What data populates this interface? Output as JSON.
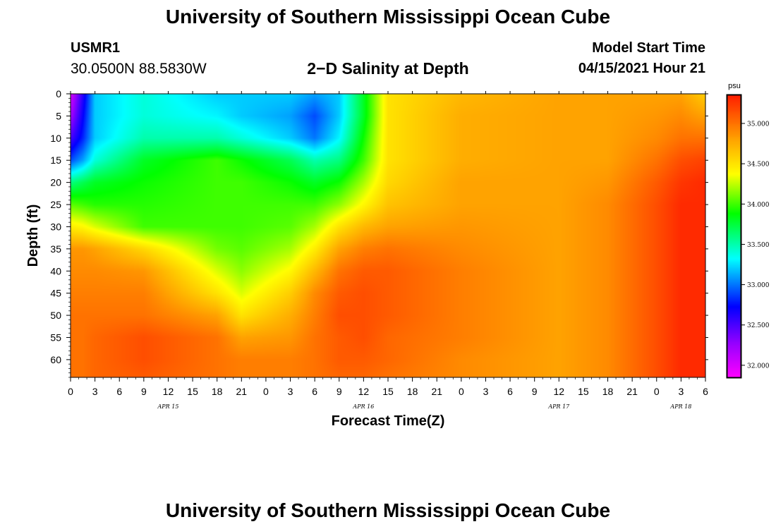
{
  "header": {
    "title": "University of Southern Mississippi Ocean Cube",
    "station_id": "USMR1",
    "location": "30.0500N  88.5830W",
    "chart_title": "2−D Salinity at Depth",
    "start_label": "Model Start Time",
    "start_value": "04/15/2021 Hour 21"
  },
  "footer": {
    "title": "University of Southern Mississippi Ocean Cube"
  },
  "colors": {
    "magenta": "#ff00ff",
    "blue": "#0000ff",
    "cyan": "#00ffff",
    "green": "#00ff00",
    "yellow": "#ffff00",
    "orange": "#ffa500",
    "red": "#ff2000"
  },
  "chart_data": {
    "type": "heatmap",
    "title": "2−D Salinity at Depth",
    "xlabel": "Forecast Time(Z)",
    "ylabel": "Depth (ft)",
    "x_range_hours": [
      0,
      78
    ],
    "y_range_ft": [
      0,
      64
    ],
    "x_tick_labels": [
      "0",
      "3",
      "6",
      "9",
      "12",
      "15",
      "18",
      "21",
      "0",
      "3",
      "6",
      "9",
      "12",
      "15",
      "18",
      "21",
      "0",
      "3",
      "6",
      "9",
      "12",
      "15",
      "18",
      "21",
      "0",
      "3",
      "6"
    ],
    "date_labels": [
      {
        "label": "APR 15",
        "hour": 12
      },
      {
        "label": "APR 16",
        "hour": 36
      },
      {
        "label": "APR 17",
        "hour": 60
      },
      {
        "label": "APR 18",
        "hour": 75
      }
    ],
    "y_ticks": [
      0,
      5,
      10,
      15,
      20,
      25,
      30,
      35,
      40,
      45,
      50,
      55,
      60
    ],
    "y_tick_labels": [
      "0",
      "5",
      "10",
      "15",
      "20",
      "25",
      "30",
      "35",
      "40",
      "45",
      "50",
      "55",
      "60"
    ],
    "colorbar": {
      "unit": "psu",
      "range": [
        31.85,
        35.35
      ],
      "tick_values": [
        32.0,
        32.5,
        33.0,
        33.5,
        34.0,
        34.5,
        35.0
      ],
      "tick_labels": [
        "32.000",
        "32.500",
        "33.000",
        "33.500",
        "34.000",
        "34.500",
        "35.000"
      ]
    },
    "grid_hours": [
      0,
      1.5,
      3,
      9,
      18,
      21,
      27,
      30,
      33,
      36,
      39,
      48,
      60,
      66,
      72,
      75,
      78
    ],
    "grid_depths": [
      0,
      5,
      10,
      15,
      20,
      25,
      30,
      35,
      40,
      45,
      50,
      55,
      60,
      64
    ],
    "salinity_psu": [
      [
        32.0,
        32.6,
        33.2,
        33.4,
        33.2,
        33.2,
        33.2,
        33.1,
        33.2,
        33.8,
        34.5,
        34.7,
        34.8,
        34.8,
        34.8,
        34.8,
        34.6
      ],
      [
        32.2,
        32.7,
        33.2,
        33.4,
        33.3,
        33.2,
        33.1,
        32.9,
        33.2,
        33.8,
        34.5,
        34.75,
        34.8,
        34.8,
        34.85,
        34.9,
        34.8
      ],
      [
        32.5,
        32.8,
        33.2,
        33.5,
        33.5,
        33.4,
        33.2,
        33.0,
        33.3,
        33.9,
        34.5,
        34.75,
        34.8,
        34.8,
        34.9,
        35.0,
        35.0
      ],
      [
        32.9,
        33.1,
        33.4,
        33.8,
        34.0,
        33.9,
        33.7,
        33.5,
        33.6,
        34.0,
        34.5,
        34.75,
        34.8,
        34.8,
        35.0,
        35.15,
        35.2
      ],
      [
        33.6,
        33.7,
        33.8,
        33.9,
        34.0,
        34.0,
        33.9,
        33.8,
        33.9,
        34.2,
        34.55,
        34.8,
        34.8,
        34.85,
        35.1,
        35.25,
        35.3
      ],
      [
        34.05,
        34.0,
        33.95,
        33.95,
        34.0,
        34.0,
        34.0,
        34.0,
        34.15,
        34.4,
        34.65,
        34.8,
        34.8,
        34.9,
        35.15,
        35.3,
        35.3
      ],
      [
        34.45,
        34.4,
        34.3,
        34.0,
        34.0,
        34.0,
        34.05,
        34.2,
        34.5,
        34.7,
        34.8,
        34.85,
        34.8,
        34.9,
        35.15,
        35.3,
        35.3
      ],
      [
        34.85,
        34.85,
        34.8,
        34.55,
        34.1,
        34.05,
        34.2,
        34.45,
        34.8,
        34.95,
        35.0,
        34.9,
        34.8,
        34.9,
        35.15,
        35.3,
        35.3
      ],
      [
        34.9,
        34.9,
        34.9,
        34.85,
        34.3,
        34.15,
        34.4,
        34.7,
        35.0,
        35.1,
        35.1,
        34.95,
        34.8,
        34.9,
        35.15,
        35.3,
        35.3
      ],
      [
        34.95,
        34.95,
        34.95,
        34.95,
        34.5,
        34.3,
        34.6,
        34.9,
        35.1,
        35.15,
        35.1,
        34.95,
        34.8,
        34.9,
        35.15,
        35.3,
        35.3
      ],
      [
        35.0,
        35.0,
        35.0,
        35.0,
        34.8,
        34.5,
        34.75,
        34.95,
        35.15,
        35.15,
        35.1,
        34.95,
        34.8,
        34.9,
        35.15,
        35.3,
        35.3
      ],
      [
        35.0,
        35.0,
        35.05,
        35.15,
        35.0,
        34.8,
        34.85,
        35.0,
        35.1,
        35.15,
        35.05,
        34.95,
        34.8,
        34.9,
        35.15,
        35.3,
        35.3
      ],
      [
        35.0,
        35.0,
        35.05,
        35.15,
        35.0,
        34.95,
        34.95,
        35.0,
        35.1,
        35.1,
        35.05,
        34.9,
        34.8,
        34.9,
        35.15,
        35.3,
        35.3
      ],
      [
        35.0,
        35.0,
        35.05,
        35.1,
        35.0,
        34.95,
        34.95,
        35.0,
        35.05,
        35.05,
        35.0,
        34.9,
        34.8,
        34.9,
        35.15,
        35.3,
        35.3
      ]
    ]
  }
}
